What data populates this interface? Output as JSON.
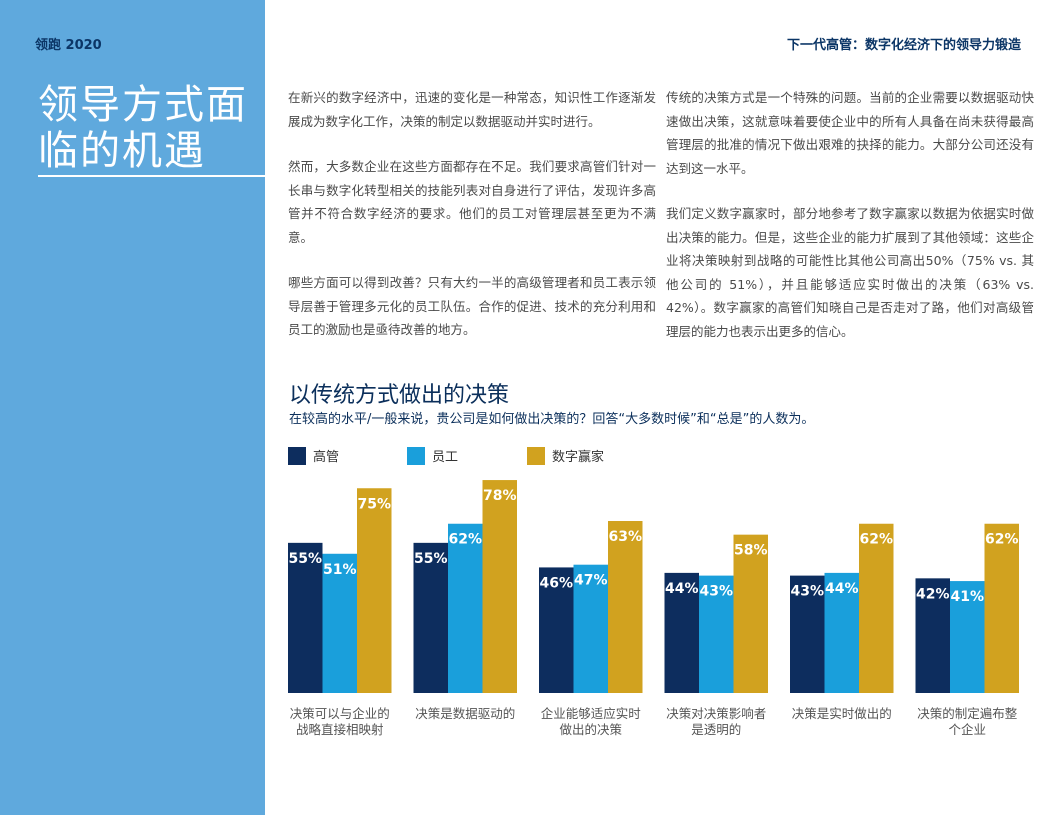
{
  "header": {
    "brand": "领跑 2020",
    "running_head": "下一代高管：数字化经济下的领导力锻造"
  },
  "sidebar": {
    "title_line1": "领导方式面",
    "title_line2": "临的机遇"
  },
  "body": {
    "col1": [
      "在新兴的数字经济中，迅速的变化是一种常态，知识性工作逐渐发展成为数字化工作，决策的制定以数据驱动并实时进行。",
      "然而，大多数企业在这些方面都存在不足。我们要求高管们针对一长串与数字化转型相关的技能列表对自身进行了评估，发现许多高管并不符合数字经济的要求。他们的员工对管理层甚至更为不满意。",
      "哪些方面可以得到改善？只有大约一半的高级管理者和员工表示领导层善于管理多元化的员工队伍。合作的促进、技术的充分利用和员工的激励也是亟待改善的地方。"
    ],
    "col2": [
      "传统的决策方式是一个特殊的问题。当前的企业需要以数据驱动快速做出决策，这就意味着要使企业中的所有人具备在尚未获得最高管理层的批准的情况下做出艰难的抉择的能力。大部分公司还没有达到这一水平。",
      "我们定义数字赢家时，部分地参考了数字赢家以数据为依据实时做出决策的能力。但是，这些企业的能力扩展到了其他领域：这些企业将决策映射到战略的可能性比其他公司高出50%（75% vs. 其他公司的 51%），并且能够适应实时做出的决策（63% vs. 42%）。数字赢家的高管们知晓自己是否走对了路，他们对高级管理层的能力也表示出更多的信心。"
    ]
  },
  "chart_data": {
    "type": "bar",
    "title": "以传统方式做出的决策",
    "subtitle": "在较高的水平/一般来说，贵公司是如何做出决策的？回答“大多数时候”和“总是”的人数为。",
    "categories": [
      [
        "决策可以与企业的",
        "战略直接相映射"
      ],
      [
        "决策是数据驱动的"
      ],
      [
        "企业能够适应实时",
        "做出的决策"
      ],
      [
        "决策对决策影响者",
        "是透明的"
      ],
      [
        "决策是实时做出的"
      ],
      [
        "决策的制定遍布整",
        "个企业"
      ]
    ],
    "series": [
      {
        "name": "高管",
        "color": "#0d2d5e",
        "values": [
          55,
          55,
          46,
          44,
          43,
          42
        ]
      },
      {
        "name": "员工",
        "color": "#1a9fdb",
        "values": [
          51,
          62,
          47,
          43,
          44,
          41
        ]
      },
      {
        "name": "数字赢家",
        "color": "#d1a21f",
        "values": [
          75,
          78,
          63,
          58,
          62,
          62
        ]
      }
    ],
    "value_suffix": "%",
    "ylim": [
      0,
      100
    ],
    "grid": false,
    "legend": "top-left"
  }
}
